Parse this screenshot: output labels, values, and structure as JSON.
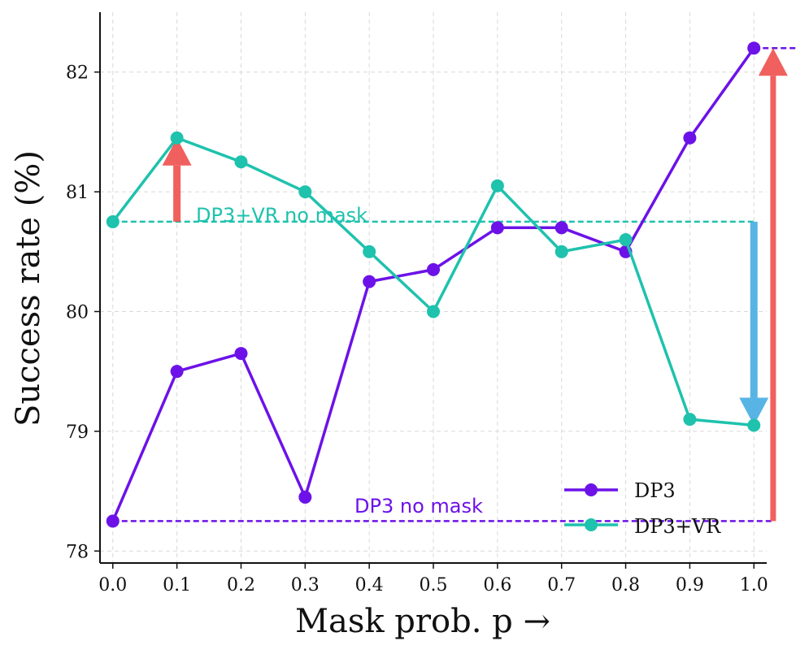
{
  "chart_data": {
    "type": "line",
    "title": "",
    "xlabel": "Mask prob. p →",
    "ylabel": "Success rate (%)",
    "xlim": [
      -0.02,
      1.02
    ],
    "ylim": [
      77.9,
      82.5
    ],
    "grid": true,
    "x": [
      0.0,
      0.1,
      0.2,
      0.3,
      0.4,
      0.5,
      0.6,
      0.7,
      0.8,
      0.9,
      1.0
    ],
    "x_tick_labels": [
      "0.0",
      "0.1",
      "0.2",
      "0.3",
      "0.4",
      "0.5",
      "0.6",
      "0.7",
      "0.8",
      "0.9",
      "1.0"
    ],
    "y_ticks": [
      78,
      79,
      80,
      81,
      82
    ],
    "y_tick_labels": [
      "78",
      "79",
      "80",
      "81",
      "82"
    ],
    "series": [
      {
        "name": "DP3",
        "color": "#6c12e8",
        "values": [
          78.25,
          79.5,
          79.65,
          78.45,
          80.25,
          80.35,
          80.7,
          80.7,
          80.5,
          81.45,
          82.2
        ]
      },
      {
        "name": "DP3+VR",
        "color": "#1ec2ad",
        "values": [
          80.75,
          81.45,
          81.25,
          81.0,
          80.5,
          80.0,
          81.05,
          80.5,
          80.6,
          79.1,
          79.05
        ]
      }
    ],
    "legend": {
      "position": "lower-right",
      "entries": [
        "DP3",
        "DP3+VR"
      ]
    },
    "baselines": [
      {
        "label": "DP3+VR no mask",
        "value": 80.75,
        "color": "#1ec2ad"
      },
      {
        "label": "DP3 no mask",
        "value": 78.25,
        "color": "#6c12e8"
      }
    ],
    "annotations": [
      {
        "kind": "arrow-up",
        "x": 0.1,
        "from": 80.75,
        "to": 81.45,
        "color": "#ef5350"
      },
      {
        "kind": "arrow-down",
        "x": 1.0,
        "from": 80.75,
        "to": 79.05,
        "color": "#4aaee3"
      },
      {
        "kind": "arrow-up",
        "x": 1.03,
        "from": 78.25,
        "to": 82.2,
        "color": "#ef5350"
      }
    ]
  }
}
